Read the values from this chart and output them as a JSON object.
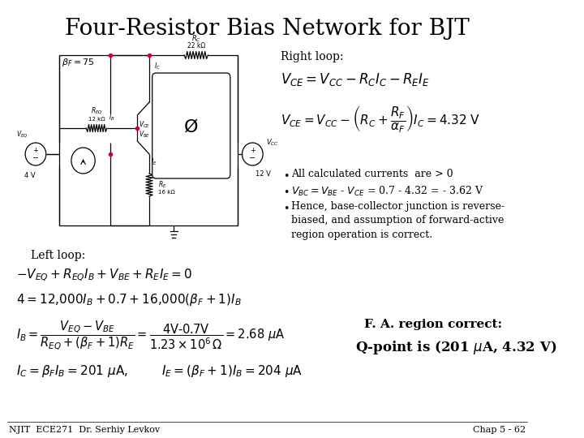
{
  "background_color": "#ffffff",
  "title": "Four-Resistor Bias Network for BJT",
  "title_fontsize": 20,
  "title_font": "serif",
  "footer_left": "NJIT  ECE271  Dr. Serhiy Levkov",
  "footer_right": "Chap 5 - 62",
  "footer_fontsize": 8,
  "right_loop_label": "Right loop:",
  "bullet1": "All calculated currents  are > 0",
  "bullet3_line1": "Hence, base-collector junction is reverse-",
  "bullet3_line2": "biased, and assumption of forward-active",
  "bullet3_line3": "region operation is correct.",
  "left_loop_label": "Left loop:",
  "fa_label": "F. A. region correct:",
  "qpoint": "Q-point is (201 μA, 4.32 V)"
}
